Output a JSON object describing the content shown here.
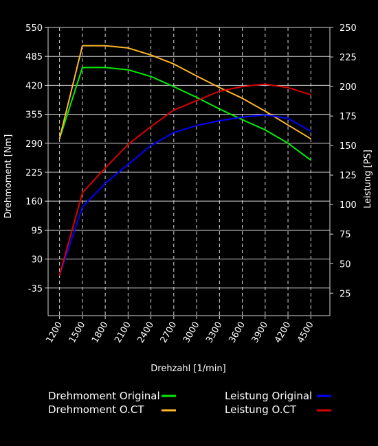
{
  "chart_data": {
    "type": "line",
    "xlabel": "Drehzahl [1/min]",
    "ylabel_left": "Drehmoment [Nm]",
    "ylabel_right": "Leistung [PS]",
    "x": [
      1200,
      1500,
      1800,
      2100,
      2400,
      2700,
      3000,
      3300,
      3600,
      3900,
      4200,
      4500
    ],
    "xlim": [
      1050,
      4750
    ],
    "ylim_left": [
      -97,
      550
    ],
    "ylim_right": [
      6,
      250
    ],
    "yticks_left": [
      550,
      485,
      420,
      355,
      290,
      225,
      160,
      95,
      30,
      -35
    ],
    "yticks_right": [
      250,
      225,
      200,
      175,
      150,
      125,
      100,
      75,
      50,
      25
    ],
    "grid": true,
    "series": [
      {
        "name": "Drehmoment Original",
        "axis": "left",
        "color": "#00ee00",
        "x": [
          1200,
          1500,
          1800,
          2100,
          2400,
          2700,
          3000,
          3300,
          3600,
          3900,
          4200,
          4500
        ],
        "values": [
          300,
          460,
          460,
          455,
          440,
          417,
          393,
          367,
          343,
          320,
          290,
          252
        ]
      },
      {
        "name": "Drehmoment O.CT",
        "axis": "left",
        "color": "#ffb628",
        "x": [
          1200,
          1500,
          1800,
          2100,
          2400,
          2700,
          3000,
          3300,
          3600,
          3900,
          4200,
          4500
        ],
        "values": [
          300,
          509,
          509,
          504,
          488,
          468,
          441,
          415,
          391,
          362,
          331,
          300
        ]
      },
      {
        "name": "Leistung Original",
        "axis": "right",
        "color": "#0000ff",
        "x": [
          1200,
          1500,
          1800,
          2100,
          2400,
          2700,
          3000,
          3300,
          3600,
          3900,
          4200,
          4500
        ],
        "values": [
          40,
          98,
          118,
          134,
          150,
          161,
          167,
          171,
          174,
          176,
          173,
          162
        ]
      },
      {
        "name": "Leistung O.CT",
        "axis": "right",
        "color": "#dd0000",
        "x": [
          1200,
          1500,
          1800,
          2100,
          2400,
          2700,
          3000,
          3300,
          3600,
          3900,
          4200,
          4500
        ],
        "values": [
          40,
          110,
          131,
          151,
          166,
          180,
          188,
          196,
          200,
          202,
          199,
          193
        ]
      }
    ],
    "legend": "bottom"
  }
}
